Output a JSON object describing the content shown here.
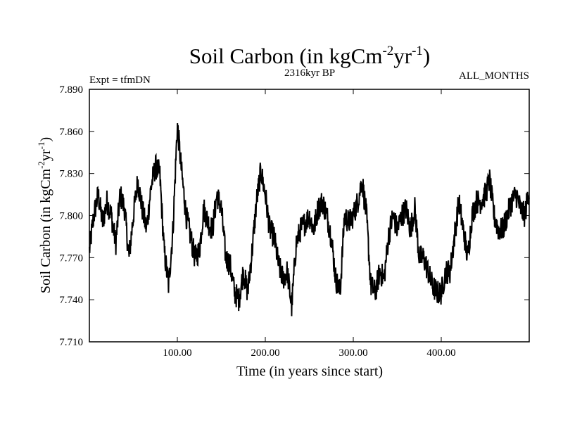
{
  "chart_data": {
    "type": "line",
    "title": "Soil Carbon (in kgCm",
    "title_sup1": "-2",
    "title_mid": "yr",
    "title_sup2": "-1",
    "title_end": ")",
    "subtitle": "2316kyr BP",
    "left_label": "Expt = tfmDN",
    "right_label": "ALL_MONTHS",
    "xlabel": "Time (in years since start)",
    "ylabel": "Soil Carbon (in kgCm",
    "ylabel_sup1": "-2",
    "ylabel_mid": "yr",
    "ylabel_sup2": "-1",
    "ylabel_end": ")",
    "xlim": [
      0,
      500
    ],
    "ylim": [
      7.71,
      7.89
    ],
    "xticks": [
      100,
      200,
      300,
      400
    ],
    "xtick_labels": [
      "100.00",
      "200.00",
      "300.00",
      "400.00"
    ],
    "yticks": [
      7.71,
      7.74,
      7.77,
      7.8,
      7.83,
      7.86,
      7.89
    ],
    "ytick_labels": [
      "7.710",
      "7.740",
      "7.770",
      "7.800",
      "7.830",
      "7.860",
      "7.890"
    ],
    "series": [
      {
        "name": "Soil Carbon",
        "x": [
          0,
          5,
          10,
          15,
          20,
          25,
          30,
          35,
          40,
          45,
          50,
          55,
          60,
          65,
          70,
          75,
          80,
          85,
          90,
          95,
          100,
          105,
          110,
          115,
          120,
          125,
          130,
          135,
          140,
          145,
          150,
          155,
          160,
          165,
          170,
          175,
          180,
          185,
          190,
          195,
          200,
          205,
          210,
          215,
          220,
          225,
          230,
          235,
          240,
          245,
          250,
          255,
          260,
          265,
          270,
          275,
          280,
          285,
          290,
          295,
          300,
          305,
          310,
          315,
          320,
          325,
          330,
          335,
          340,
          345,
          350,
          355,
          360,
          365,
          370,
          375,
          380,
          385,
          390,
          395,
          400,
          405,
          410,
          415,
          420,
          425,
          430,
          435,
          440,
          445,
          450,
          455,
          460,
          465,
          470,
          475,
          480,
          485,
          490,
          495,
          500
        ],
        "values": [
          7.775,
          7.8,
          7.815,
          7.795,
          7.81,
          7.8,
          7.78,
          7.815,
          7.805,
          7.77,
          7.8,
          7.825,
          7.805,
          7.79,
          7.82,
          7.835,
          7.83,
          7.775,
          7.75,
          7.79,
          7.865,
          7.83,
          7.8,
          7.785,
          7.77,
          7.775,
          7.805,
          7.795,
          7.79,
          7.815,
          7.805,
          7.77,
          7.765,
          7.745,
          7.74,
          7.76,
          7.745,
          7.775,
          7.81,
          7.832,
          7.815,
          7.79,
          7.785,
          7.765,
          7.755,
          7.76,
          7.735,
          7.78,
          7.79,
          7.795,
          7.8,
          7.79,
          7.805,
          7.81,
          7.8,
          7.785,
          7.755,
          7.745,
          7.8,
          7.795,
          7.8,
          7.81,
          7.825,
          7.8,
          7.75,
          7.745,
          7.76,
          7.755,
          7.785,
          7.8,
          7.79,
          7.8,
          7.805,
          7.79,
          7.805,
          7.77,
          7.77,
          7.76,
          7.75,
          7.745,
          7.745,
          7.76,
          7.76,
          7.785,
          7.81,
          7.79,
          7.77,
          7.8,
          7.81,
          7.81,
          7.815,
          7.825,
          7.8,
          7.79,
          7.79,
          7.8,
          7.81,
          7.815,
          7.805,
          7.8,
          7.82
        ]
      }
    ]
  }
}
